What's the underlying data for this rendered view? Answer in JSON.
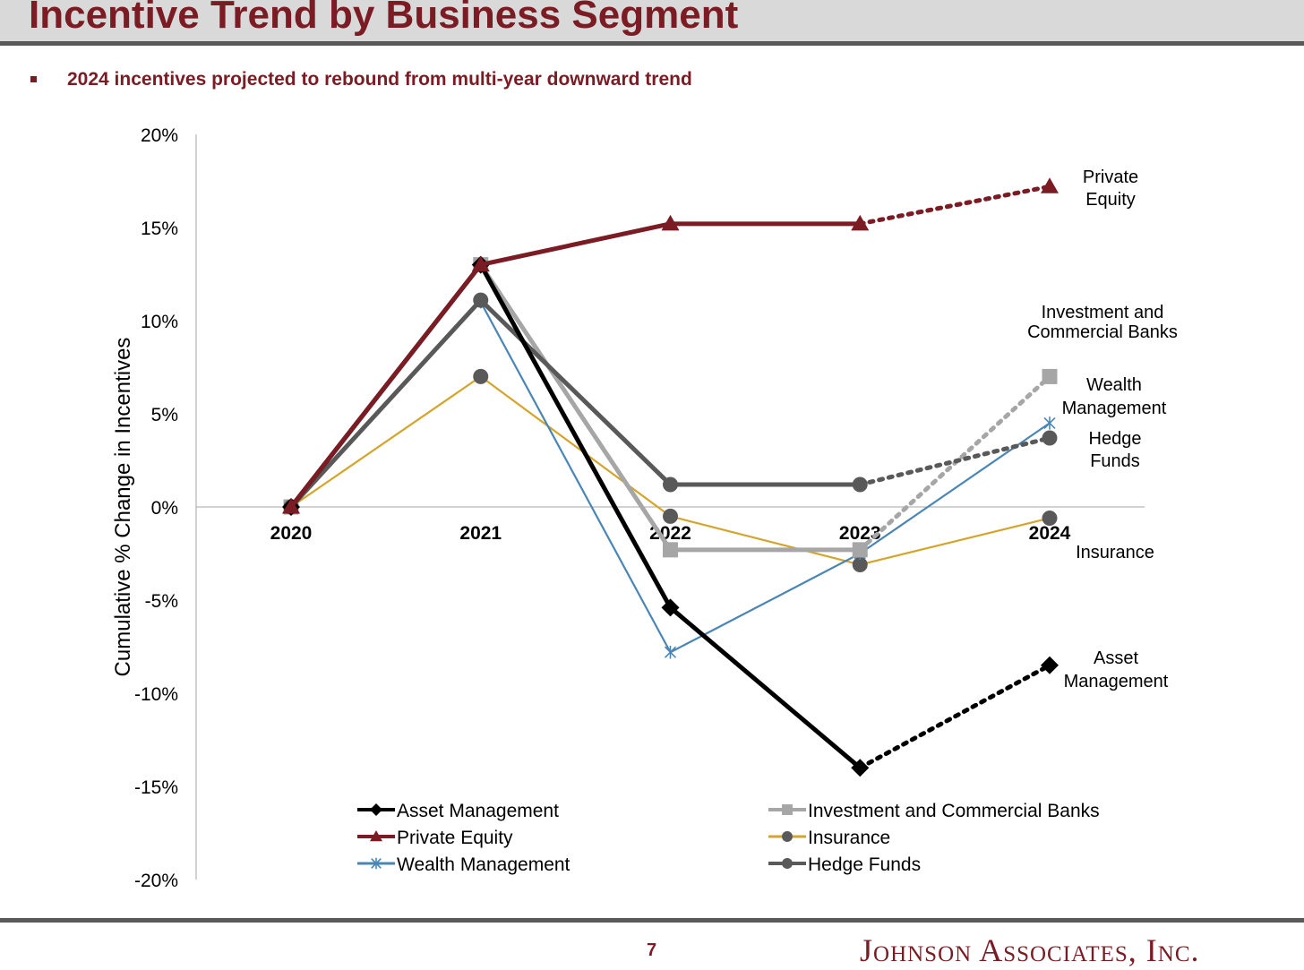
{
  "header": {
    "title": "Incentive Trend by Business Segment",
    "subtitle": "2024 incentives projected to rebound from multi-year downward trend"
  },
  "footer": {
    "page_number": "7",
    "company": "Johnson Associates, Inc."
  },
  "colors": {
    "brand": "#7b1c24",
    "asset_management": "#000000",
    "private_equity": "#7b1c24",
    "wealth_management": "#4a86b5",
    "investment_banks": "#a6a6a6",
    "insurance": "#d4a52c",
    "hedge_funds": "#595959"
  },
  "chart_data": {
    "type": "line",
    "title": "",
    "xlabel": "",
    "ylabel": "Cumulative % Change in Incentives",
    "categories": [
      "2020",
      "2021",
      "2022",
      "2023",
      "2024"
    ],
    "ylim": [
      -20,
      20
    ],
    "yticks": [
      20,
      15,
      10,
      5,
      0,
      -5,
      -10,
      -15,
      -20
    ],
    "ytick_labels": [
      "20%",
      "15%",
      "10%",
      "5%",
      "0%",
      "-5%",
      "-10%",
      "-15%",
      "-20%"
    ],
    "projected_from_index": 3,
    "series": [
      {
        "key": "asset_management",
        "name": "Asset Management",
        "end_label": [
          "Asset",
          "Management"
        ],
        "values": [
          0,
          13,
          -5.4,
          -14,
          -8.5
        ],
        "marker": "diamond",
        "color": "#000000",
        "width": 5,
        "projected_dotted": true
      },
      {
        "key": "private_equity",
        "name": "Private Equity",
        "end_label": [
          "Private",
          "Equity"
        ],
        "values": [
          0,
          13,
          15.2,
          15.2,
          17.2
        ],
        "marker": "triangle",
        "color": "#7b1c24",
        "width": 5,
        "projected_dotted": true
      },
      {
        "key": "wealth_management",
        "name": "Wealth Management",
        "end_label": [
          "Wealth",
          "Management"
        ],
        "values": [
          0,
          11,
          -7.8,
          -2.5,
          4.5
        ],
        "marker": "star",
        "color": "#4a86b5",
        "width": 2.2,
        "projected_dotted": false
      },
      {
        "key": "investment_banks",
        "name": "Investment and Commercial Banks",
        "end_label": [
          "Investment and",
          "Commercial Banks"
        ],
        "values": [
          0,
          13,
          -2.3,
          -2.3,
          7
        ],
        "marker": "square",
        "color": "#a6a6a6",
        "width": 5,
        "projected_dotted": true
      },
      {
        "key": "insurance",
        "name": "Insurance",
        "end_label": [
          "Insurance"
        ],
        "values": [
          0,
          7,
          -0.5,
          -3.1,
          -0.6
        ],
        "marker": "circle",
        "color": "#d4a52c",
        "width": 2.2,
        "marker_color": "#595959",
        "projected_dotted": false
      },
      {
        "key": "hedge_funds",
        "name": "Hedge Funds",
        "end_label": [
          "Hedge",
          "Funds"
        ],
        "values": [
          0,
          11.1,
          1.2,
          1.2,
          3.7
        ],
        "marker": "circle",
        "color": "#595959",
        "width": 5,
        "projected_dotted": true
      }
    ],
    "legend_order": [
      "asset_management",
      "investment_banks",
      "private_equity",
      "insurance",
      "wealth_management",
      "hedge_funds"
    ]
  }
}
